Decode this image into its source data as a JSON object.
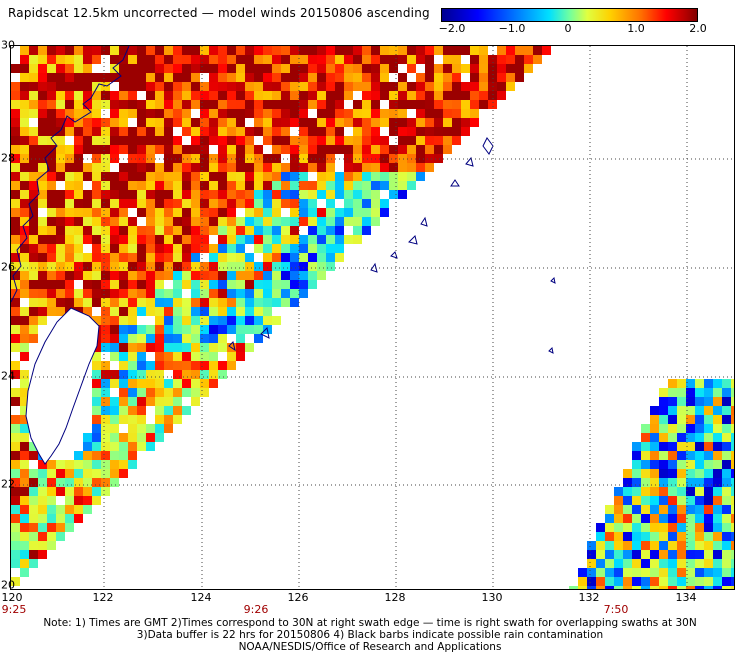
{
  "title": "Rapidscat 12.5km uncorrected — model winds 20150806 ascending",
  "colorbar": {
    "labels": [
      "−2.0",
      "−1.0",
      "0",
      "1.0",
      "2.0"
    ],
    "range": [
      -2.0,
      2.0
    ]
  },
  "axes": {
    "lat_labels": [
      "30",
      "28",
      "26",
      "24",
      "22",
      "20"
    ],
    "lon_labels": [
      "120",
      "122",
      "124",
      "126",
      "128",
      "130",
      "132",
      "134"
    ],
    "lat_range": [
      20,
      30
    ],
    "lon_range": [
      120,
      134.9
    ]
  },
  "swath_times": [
    "9:25",
    "9:26",
    "7:50"
  ],
  "notes": [
    "Note: 1) Times are GMT 2)Times correspond to 30N at right swath edge — time is right swath for overlapping swaths at 30N",
    "3)Data buffer is 22 hrs for 20150806 4) Black barbs indicate possible rain contamination",
    "NOAA/NESDIS/Office of Research and Applications"
  ],
  "colors": {
    "coastline": "#000080",
    "grid": "#444444",
    "deep_red": "#9b0000",
    "blue": "#0000ff"
  }
}
